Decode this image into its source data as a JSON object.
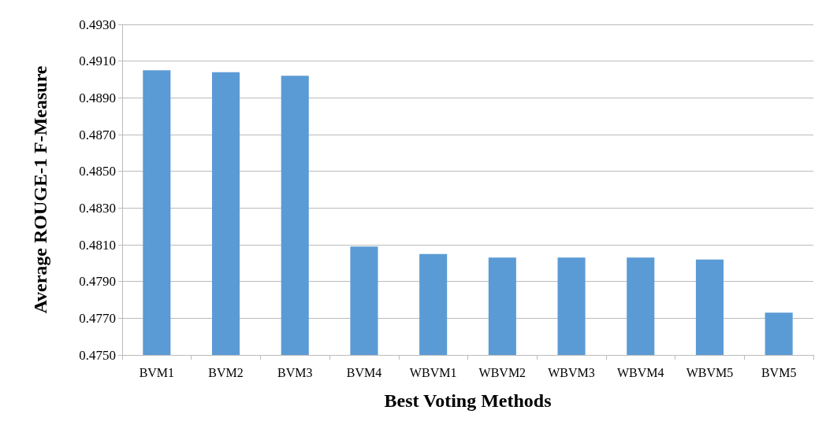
{
  "chart_data": {
    "type": "bar",
    "xlabel": "Best Voting Methods",
    "ylabel": "Average ROUGE-1 F-Measure",
    "categories": [
      "BVM1",
      "BVM2",
      "BVM3",
      "BVM4",
      "WBVM1",
      "WBVM2",
      "WBVM3",
      "WBVM4",
      "WBVM5",
      "BVM5"
    ],
    "values": [
      0.4905,
      0.4904,
      0.4902,
      0.4809,
      0.4805,
      0.4803,
      0.4803,
      0.4803,
      0.4802,
      0.4773
    ],
    "color": "#5b9bd5",
    "ylim": [
      0.475,
      0.493
    ],
    "yticks": [
      {
        "value": 0.475,
        "label": "0.4750"
      },
      {
        "value": 0.477,
        "label": "0.4770"
      },
      {
        "value": 0.479,
        "label": "0.4790"
      },
      {
        "value": 0.481,
        "label": "0.4810"
      },
      {
        "value": 0.483,
        "label": "0.4830"
      },
      {
        "value": 0.485,
        "label": "0.4850"
      },
      {
        "value": 0.487,
        "label": "0.4870"
      },
      {
        "value": 0.489,
        "label": "0.4890"
      },
      {
        "value": 0.491,
        "label": "0.4910"
      },
      {
        "value": 0.493,
        "label": "0.4930"
      }
    ],
    "grid": "y"
  }
}
